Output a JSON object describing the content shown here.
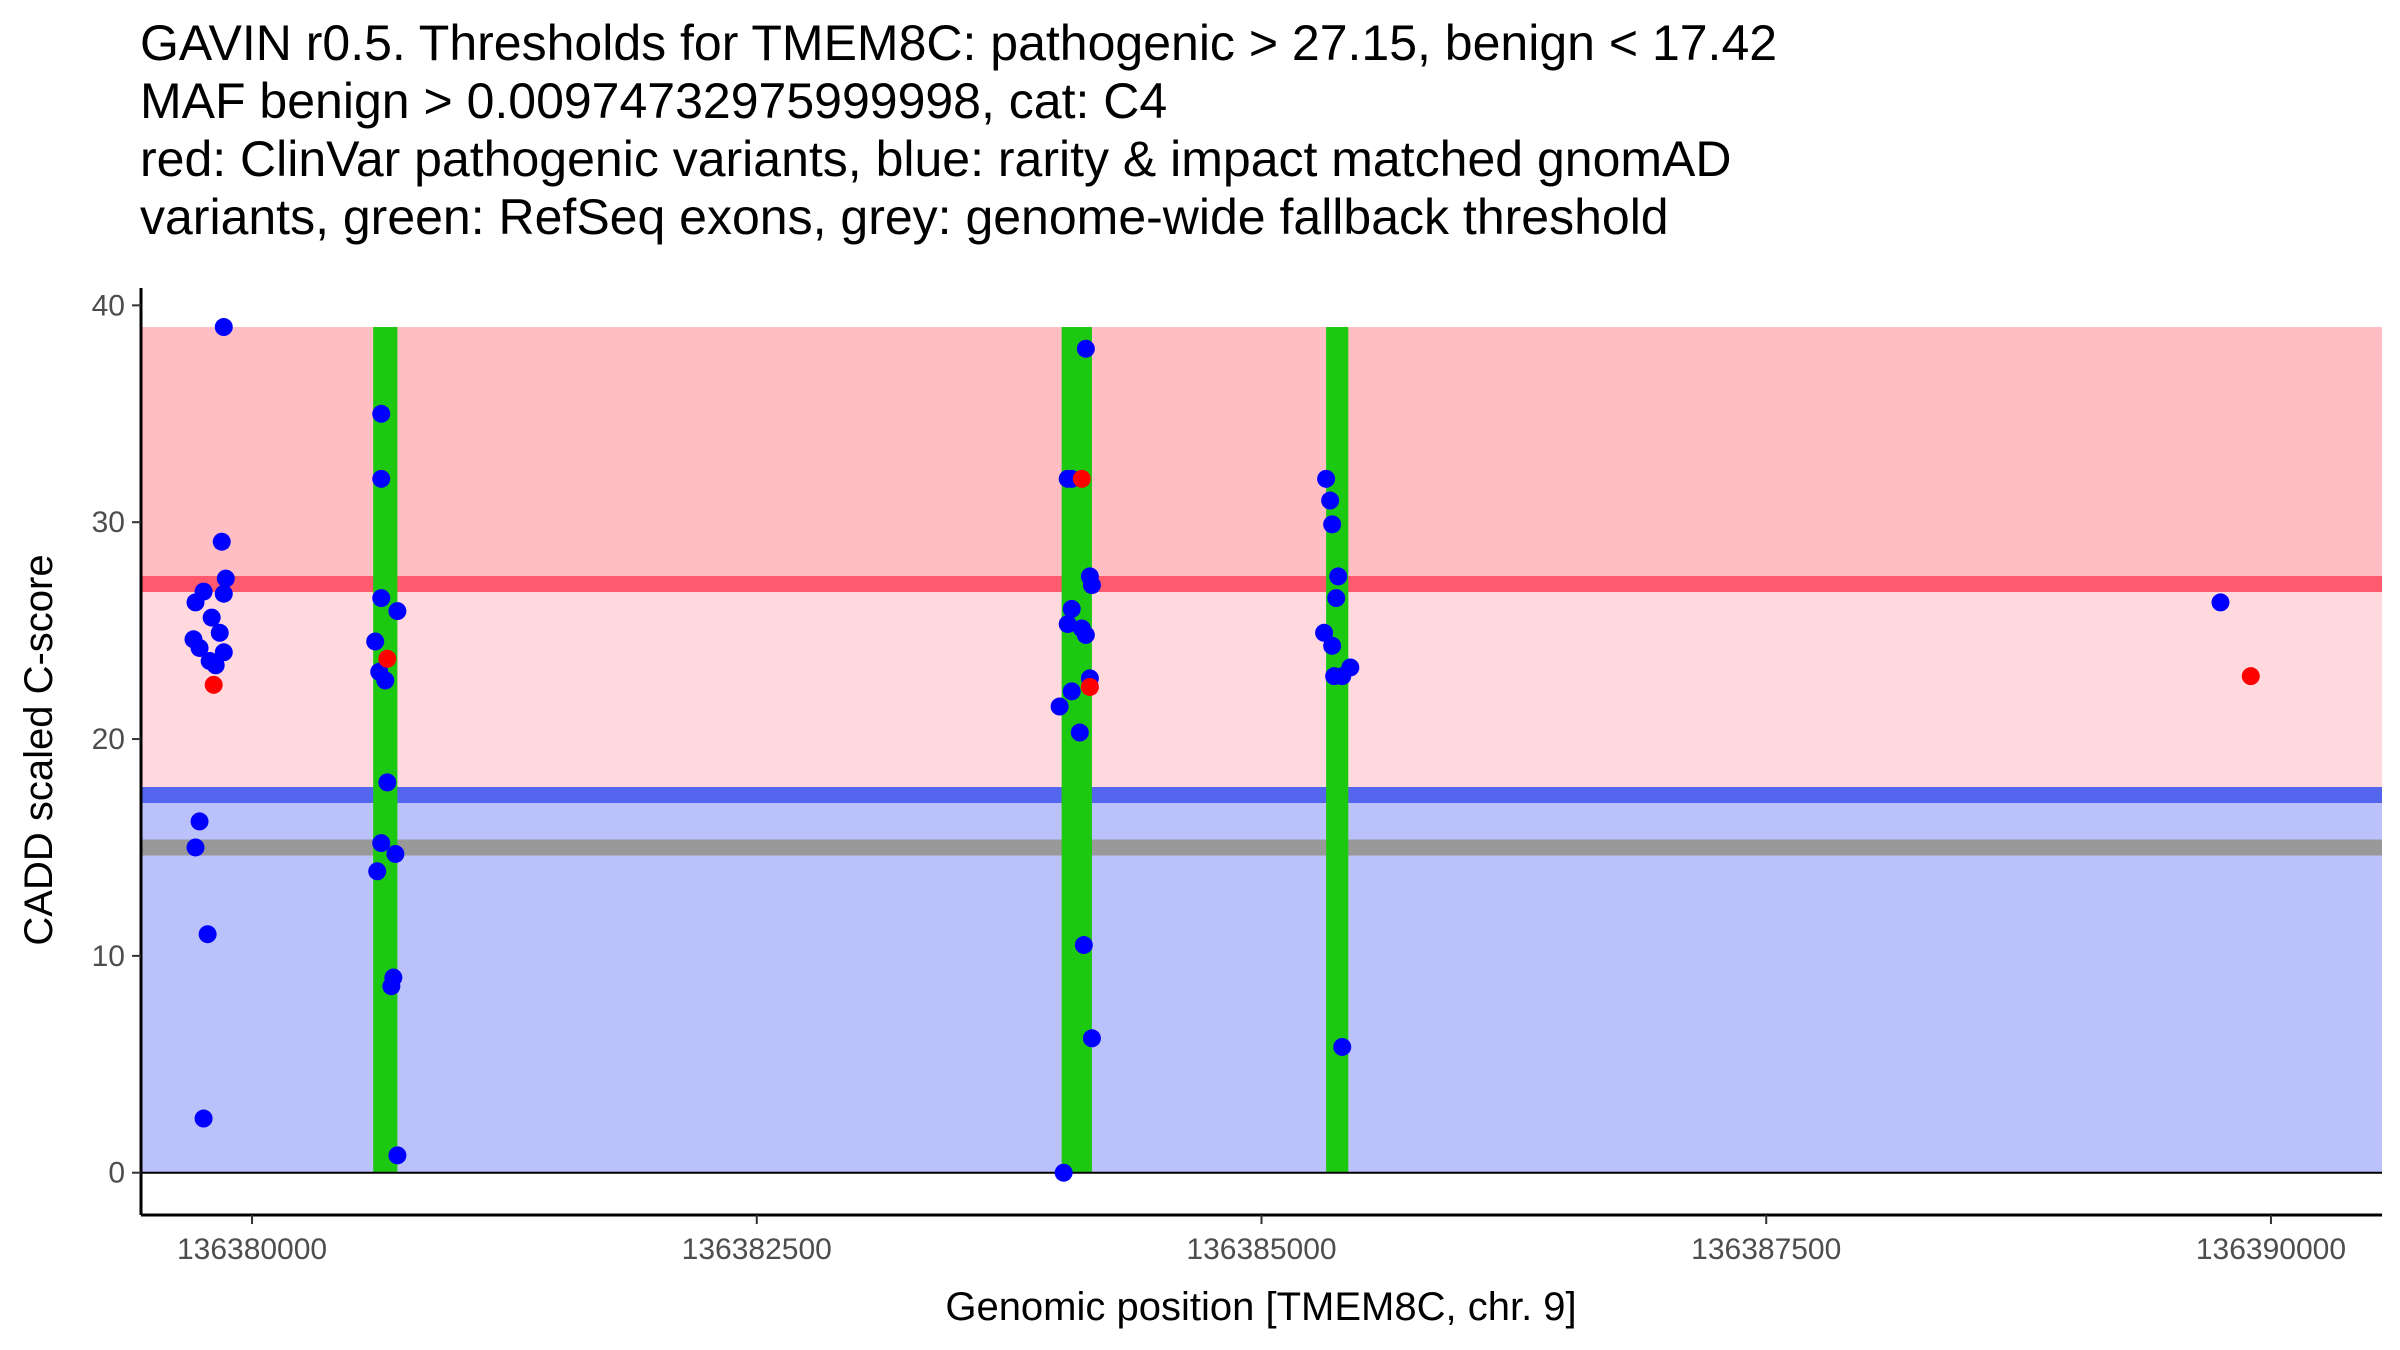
{
  "chart_data": {
    "type": "scatter",
    "title_lines": [
      "GAVIN r0.5. Thresholds for TMEM8C: pathogenic > 27.15, benign < 17.42",
      "MAF benign > 0.00974732975999998, cat: C4",
      "red: ClinVar pathogenic variants, blue: rarity & impact matched gnomAD",
      "variants, green: RefSeq exons, grey: genome-wide fallback threshold"
    ],
    "xlabel": "Genomic position [TMEM8C, chr. 9]",
    "ylabel": "CADD scaled C-score",
    "xlim": [
      136379450,
      136390550
    ],
    "ylim": [
      -1.95,
      40.8
    ],
    "xticks": [
      136380000,
      136382500,
      136385000,
      136387500,
      136390000
    ],
    "xtick_labels": [
      "136380000",
      "136382500",
      "136385000",
      "136387500",
      "136390000"
    ],
    "yticks": [
      0,
      10,
      20,
      30,
      40
    ],
    "ytick_labels": [
      "0",
      "10",
      "20",
      "30",
      "40"
    ],
    "regions": [
      {
        "name": "pathogenic-region",
        "y0": 27.15,
        "y1": 39,
        "color": "#ffbdc4"
      },
      {
        "name": "intermediate-region",
        "y0": 17.42,
        "y1": 27.15,
        "color": "#ffd9de"
      },
      {
        "name": "benign-region",
        "y0": 0,
        "y1": 17.42,
        "color": "#bbc1fa"
      }
    ],
    "region_x_extent": [
      136379450,
      136390550
    ],
    "threshold_lines": [
      {
        "name": "pathogenic-threshold-line",
        "y": 27.15,
        "color": "#ff5a6e"
      },
      {
        "name": "benign-threshold-line",
        "y": 17.42,
        "color": "#5566ee"
      },
      {
        "name": "fallback-threshold-line",
        "y": 15,
        "color": "#999999"
      }
    ],
    "exons": [
      {
        "start": 136380600,
        "end": 136380720,
        "y0": 0,
        "y1": 39,
        "color": "#1dc910"
      },
      {
        "start": 136384010,
        "end": 136384160,
        "y0": 0,
        "y1": 39,
        "color": "#1dc910"
      },
      {
        "start": 136385320,
        "end": 136385430,
        "y0": 0,
        "y1": 39,
        "color": "#1dc910"
      }
    ],
    "series": [
      {
        "name": "gnomAD matched variants",
        "color": "#0000ff",
        "points": [
          [
            136379860,
            39
          ],
          [
            136379850,
            29.1
          ],
          [
            136379870,
            27.4
          ],
          [
            136379860,
            26.7
          ],
          [
            136379760,
            26.8
          ],
          [
            136379720,
            26.3
          ],
          [
            136379800,
            25.6
          ],
          [
            136379840,
            24.9
          ],
          [
            136379710,
            24.6
          ],
          [
            136379740,
            24.2
          ],
          [
            136379860,
            24
          ],
          [
            136379790,
            23.6
          ],
          [
            136379820,
            23.4
          ],
          [
            136379740,
            16.2
          ],
          [
            136379720,
            15
          ],
          [
            136379780,
            11
          ],
          [
            136379760,
            2.5
          ],
          [
            136380640,
            35
          ],
          [
            136380640,
            32
          ],
          [
            136380640,
            26.5
          ],
          [
            136380720,
            25.9
          ],
          [
            136380610,
            24.5
          ],
          [
            136380630,
            23.1
          ],
          [
            136380660,
            22.7
          ],
          [
            136380670,
            18
          ],
          [
            136380640,
            15.2
          ],
          [
            136380710,
            14.7
          ],
          [
            136380620,
            13.9
          ],
          [
            136380700,
            9
          ],
          [
            136380690,
            8.6
          ],
          [
            136380720,
            0.8
          ],
          [
            136384130,
            38
          ],
          [
            136384040,
            32
          ],
          [
            136384060,
            32
          ],
          [
            136384150,
            27.5
          ],
          [
            136384160,
            27.1
          ],
          [
            136384060,
            26
          ],
          [
            136384040,
            25.3
          ],
          [
            136384110,
            25.1
          ],
          [
            136384130,
            24.8
          ],
          [
            136384150,
            22.8
          ],
          [
            136384060,
            22.2
          ],
          [
            136384000,
            21.5
          ],
          [
            136384100,
            20.3
          ],
          [
            136384120,
            10.5
          ],
          [
            136384160,
            6.2
          ],
          [
            136384020,
            0
          ],
          [
            136385320,
            32
          ],
          [
            136385340,
            31
          ],
          [
            136385350,
            29.9
          ],
          [
            136385380,
            27.5
          ],
          [
            136385370,
            26.5
          ],
          [
            136385310,
            24.9
          ],
          [
            136385350,
            24.3
          ],
          [
            136385440,
            23.3
          ],
          [
            136385360,
            22.9
          ],
          [
            136385400,
            22.9
          ],
          [
            136385400,
            5.8
          ],
          [
            136389750,
            26.3
          ]
        ]
      },
      {
        "name": "ClinVar pathogenic variants",
        "color": "#ff0000",
        "points": [
          [
            136379810,
            22.5
          ],
          [
            136380670,
            23.7
          ],
          [
            136384110,
            32
          ],
          [
            136384150,
            22.4
          ],
          [
            136389900,
            22.9
          ]
        ]
      }
    ]
  }
}
